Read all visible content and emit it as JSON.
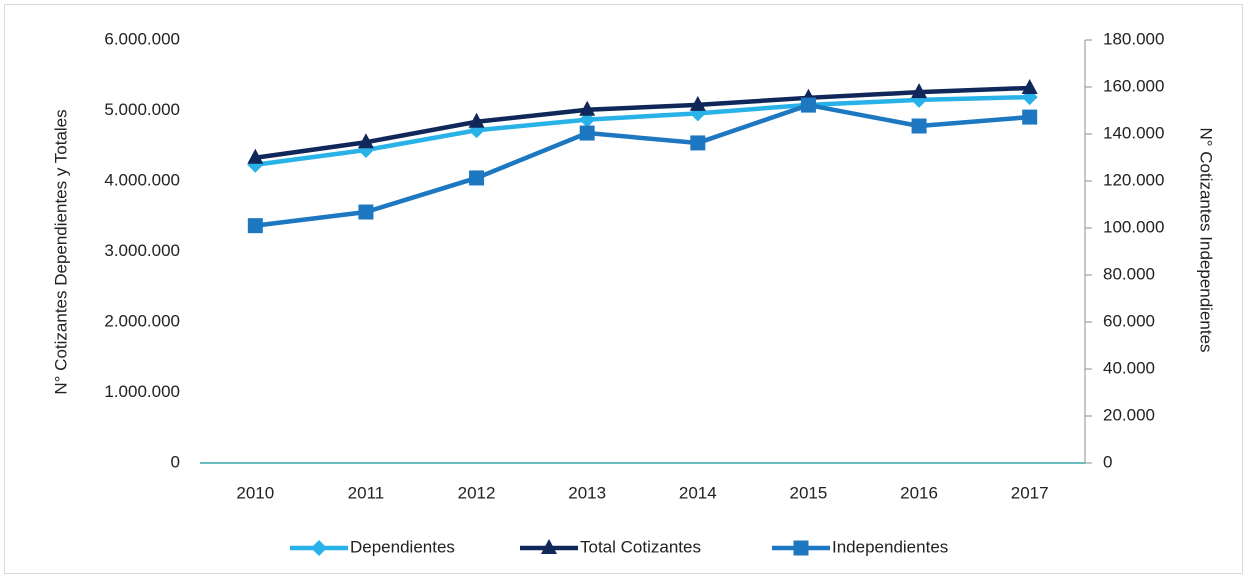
{
  "chart_data": {
    "type": "line",
    "categories": [
      "2010",
      "2011",
      "2012",
      "2013",
      "2014",
      "2015",
      "2016",
      "2017"
    ],
    "ylabel": "N° Cotizantes Dependientes y Totales",
    "y2label": "N° Cotizantes Independientes",
    "ylim": [
      0,
      6000000
    ],
    "yticks": [
      0,
      {
        "value": 1000000,
        "label": "1.000.000"
      },
      {
        "value": 2000000,
        "label": "2.000.000"
      },
      {
        "value": 3000000,
        "label": "3.000.000"
      },
      {
        "value": 4000000,
        "label": "4.000.000"
      },
      {
        "value": 5000000,
        "label": "5.000.000"
      },
      {
        "value": 6000000,
        "label": "6.000.000"
      }
    ],
    "y2lim": [
      0,
      180000
    ],
    "y2ticks": [
      0,
      {
        "value": 20000,
        "label": "20.000"
      },
      {
        "value": 40000,
        "label": "40.000"
      },
      {
        "value": 60000,
        "label": "60.000"
      },
      {
        "value": 80000,
        "label": "80.000"
      },
      {
        "value": 100000,
        "label": "100.000"
      },
      {
        "value": 120000,
        "label": "120.000"
      },
      {
        "value": 140000,
        "label": "140.000"
      },
      {
        "value": 160000,
        "label": "160.000"
      },
      {
        "value": 180000,
        "label": "180.000"
      }
    ],
    "legend": "bottom",
    "series": [
      {
        "name": "Dependientes",
        "color": "#29b2e8",
        "marker": "diamond",
        "values": [
          4230000,
          4440000,
          4720000,
          4870000,
          4960000,
          5080000,
          5150000,
          5190000
        ]
      },
      {
        "name": "Total Cotizantes",
        "color": "#10275a",
        "marker": "triangle",
        "values": [
          4330000,
          4550000,
          4840000,
          5010000,
          5080000,
          5180000,
          5260000,
          5320000
        ]
      },
      {
        "name": "Independientes",
        "color": "#1d78c1",
        "marker": "square",
        "axis": "y2",
        "values": [
          101000,
          106800,
          121300,
          140400,
          136200,
          152300,
          143400,
          147200
        ]
      }
    ]
  }
}
